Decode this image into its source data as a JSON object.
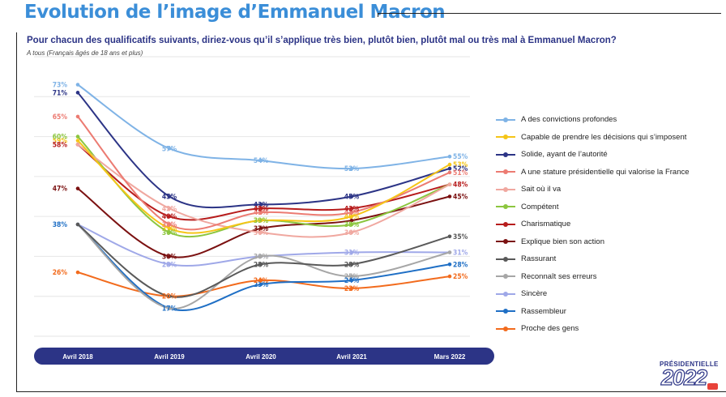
{
  "header": {
    "title": "Evolution de l’image d’Emmanuel Macron",
    "question": "Pour chacun des qualificatifs suivants, diriez-vous qu’il s’applique très bien, plutôt bien, plutôt mal ou très mal à Emmanuel Macron?",
    "population": "A tous (Français âgés de 18 ans et plus)"
  },
  "logo": {
    "label": "PRÉSIDENTIELLE",
    "year": "2022"
  },
  "chart_data": {
    "type": "line",
    "title": "Evolution de l’image d’Emmanuel Macron",
    "subtitle": "Pour chacun des qualificatifs suivants, diriez-vous qu’il s’applique très bien, plutôt bien, plutôt mal ou très mal à Emmanuel Macron?",
    "categories": [
      "Avril 2018",
      "Avril 2019",
      "Avril 2020",
      "Avril 2021",
      "Mars 2022"
    ],
    "value_suffix": "%",
    "ylim": [
      10,
      80
    ],
    "grid": true,
    "legend_position": "right",
    "series": [
      {
        "name": "A des convictions profondes",
        "color": "#7fb3e6",
        "values": [
          73,
          57,
          54,
          52,
          55
        ]
      },
      {
        "name": "Capable de prendre les décisions qui s’imposent",
        "color": "#f5c518",
        "values": [
          59,
          37,
          39,
          40,
          53
        ]
      },
      {
        "name": "Solide, ayant de l’autorité",
        "color": "#2c3486",
        "values": [
          71,
          45,
          43,
          45,
          52
        ]
      },
      {
        "name": "A une stature présidentielle qui valorise la France",
        "color": "#ec7b72",
        "values": [
          65,
          38,
          41,
          41,
          51
        ]
      },
      {
        "name": "Sait où il va",
        "color": "#f0a8a0",
        "values": [
          58,
          42,
          36,
          36,
          48
        ]
      },
      {
        "name": "Compétent",
        "color": "#8cc63f",
        "values": [
          60,
          36,
          39,
          38,
          48
        ]
      },
      {
        "name": "Charismatique",
        "color": "#b71c1c",
        "values": [
          58,
          40,
          42,
          42,
          48
        ]
      },
      {
        "name": "Explique bien son action",
        "color": "#7b1111",
        "values": [
          47,
          30,
          37,
          39,
          45
        ]
      },
      {
        "name": "Rassurant",
        "color": "#595959",
        "values": [
          38,
          20,
          28,
          28,
          35
        ]
      },
      {
        "name": "Reconnaît ses erreurs",
        "color": "#a6a6a6",
        "values": [
          38,
          17,
          30,
          25,
          31
        ]
      },
      {
        "name": "Sincère",
        "color": "#9fa8e8",
        "values": [
          38,
          28,
          30,
          31,
          31
        ]
      },
      {
        "name": "Rassembleur",
        "color": "#1f6fc5",
        "values": [
          38,
          17,
          23,
          24,
          28
        ]
      },
      {
        "name": "Proche des gens",
        "color": "#f26b1d",
        "values": [
          26,
          20,
          24,
          22,
          25
        ]
      }
    ],
    "data_labels": [
      {
        "series": 0,
        "point": 0,
        "text": "73%"
      },
      {
        "series": 0,
        "point": 1,
        "text": "57%"
      },
      {
        "series": 0,
        "point": 2,
        "text": "54%"
      },
      {
        "series": 0,
        "point": 3,
        "text": "52%"
      },
      {
        "series": 0,
        "point": 4,
        "text": "55%"
      },
      {
        "series": 1,
        "point": 0,
        "text": "59%"
      },
      {
        "series": 1,
        "point": 1,
        "text": "37%"
      },
      {
        "series": 1,
        "point": 2,
        "text": "39%"
      },
      {
        "series": 1,
        "point": 3,
        "text": "40%"
      },
      {
        "series": 1,
        "point": 4,
        "text": "53%"
      },
      {
        "series": 2,
        "point": 0,
        "text": "71%"
      },
      {
        "series": 2,
        "point": 1,
        "text": "45%"
      },
      {
        "series": 2,
        "point": 2,
        "text": "43%"
      },
      {
        "series": 2,
        "point": 3,
        "text": "45%"
      },
      {
        "series": 2,
        "point": 4,
        "text": "52%"
      },
      {
        "series": 3,
        "point": 0,
        "text": "65%"
      },
      {
        "series": 3,
        "point": 1,
        "text": "38%"
      },
      {
        "series": 3,
        "point": 2,
        "text": "41%"
      },
      {
        "series": 3,
        "point": 3,
        "text": "41%"
      },
      {
        "series": 3,
        "point": 4,
        "text": "51%"
      },
      {
        "series": 4,
        "point": 1,
        "text": "42%"
      },
      {
        "series": 4,
        "point": 2,
        "text": "36%"
      },
      {
        "series": 4,
        "point": 3,
        "text": "36%"
      },
      {
        "series": 5,
        "point": 0,
        "text": "60%"
      },
      {
        "series": 5,
        "point": 1,
        "text": "36%"
      },
      {
        "series": 5,
        "point": 2,
        "text": "39%"
      },
      {
        "series": 5,
        "point": 3,
        "text": "38%"
      },
      {
        "series": 6,
        "point": 0,
        "text": "58%"
      },
      {
        "series": 6,
        "point": 1,
        "text": "40%"
      },
      {
        "series": 6,
        "point": 2,
        "text": "42%"
      },
      {
        "series": 6,
        "point": 3,
        "text": "42%"
      },
      {
        "series": 6,
        "point": 4,
        "text": "48%"
      },
      {
        "series": 7,
        "point": 0,
        "text": "47%"
      },
      {
        "series": 7,
        "point": 1,
        "text": "30%"
      },
      {
        "series": 7,
        "point": 2,
        "text": "37%"
      },
      {
        "series": 7,
        "point": 4,
        "text": "45%"
      },
      {
        "series": 8,
        "point": 2,
        "text": "28%"
      },
      {
        "series": 8,
        "point": 3,
        "text": "28%"
      },
      {
        "series": 8,
        "point": 4,
        "text": "35%"
      },
      {
        "series": 9,
        "point": 2,
        "text": "30%"
      },
      {
        "series": 9,
        "point": 3,
        "text": "25%"
      },
      {
        "series": 10,
        "point": 1,
        "text": "28%"
      },
      {
        "series": 10,
        "point": 3,
        "text": "31%"
      },
      {
        "series": 10,
        "point": 4,
        "text": "31%"
      },
      {
        "series": 11,
        "point": 0,
        "text": "38%"
      },
      {
        "series": 11,
        "point": 1,
        "text": "17%"
      },
      {
        "series": 11,
        "point": 2,
        "text": "23%"
      },
      {
        "series": 11,
        "point": 3,
        "text": "24%"
      },
      {
        "series": 11,
        "point": 4,
        "text": "28%"
      },
      {
        "series": 12,
        "point": 0,
        "text": "26%"
      },
      {
        "series": 12,
        "point": 1,
        "text": "20%"
      },
      {
        "series": 12,
        "point": 2,
        "text": "24%"
      },
      {
        "series": 12,
        "point": 3,
        "text": "22%"
      },
      {
        "series": 12,
        "point": 4,
        "text": "25%"
      }
    ]
  }
}
